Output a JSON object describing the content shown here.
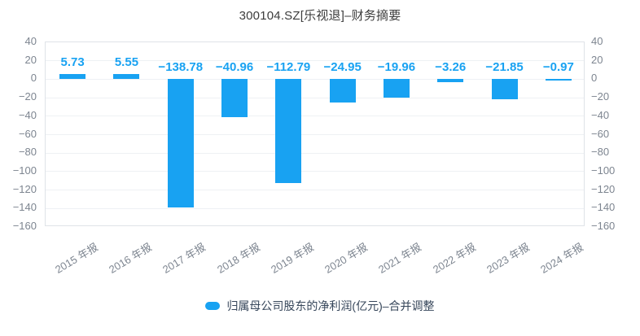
{
  "title": "300104.SZ[乐视退]–财务摘要",
  "colors": {
    "bar": "#18a2f2",
    "value_label": "#18a2f2",
    "axis_text": "#7d8590",
    "title_text": "#3c3c3c",
    "legend_text": "#36465a",
    "grid_line": "#eef1f4",
    "plot_border": "#dfe3e8",
    "background": "#ffffff"
  },
  "chart_data": {
    "type": "bar",
    "title": "300104.SZ[乐视退]–财务摘要",
    "categories": [
      "2015 年报",
      "2016 年报",
      "2017 年报",
      "2018 年报",
      "2019 年报",
      "2020 年报",
      "2021 年报",
      "2022 年报",
      "2023 年报",
      "2024 年报"
    ],
    "values": [
      5.73,
      5.55,
      -138.78,
      -40.96,
      -112.79,
      -24.95,
      -19.96,
      -3.26,
      -21.85,
      -0.97
    ],
    "value_labels": [
      "5.73",
      "5.55",
      "−138.78",
      "−40.96",
      "−112.79",
      "−24.95",
      "−19.96",
      "−3.26",
      "−21.85",
      "−0.97"
    ],
    "series_name": "归属母公司股东的净利润(亿元)–合并调整",
    "xlabel": "",
    "ylabel": "",
    "ylim": [
      -160,
      40
    ],
    "ytick_step": 20,
    "ytick_labels": [
      "40",
      "20",
      "0",
      "−20",
      "−40",
      "−60",
      "−80",
      "−100",
      "−120",
      "−140",
      "−160"
    ],
    "grid": true,
    "dual_y_axis": true,
    "legend_position": "bottom"
  },
  "legend": {
    "items": [
      {
        "label": "归属母公司股东的净利润(亿元)–合并调整",
        "color": "#18a2f2"
      }
    ]
  }
}
